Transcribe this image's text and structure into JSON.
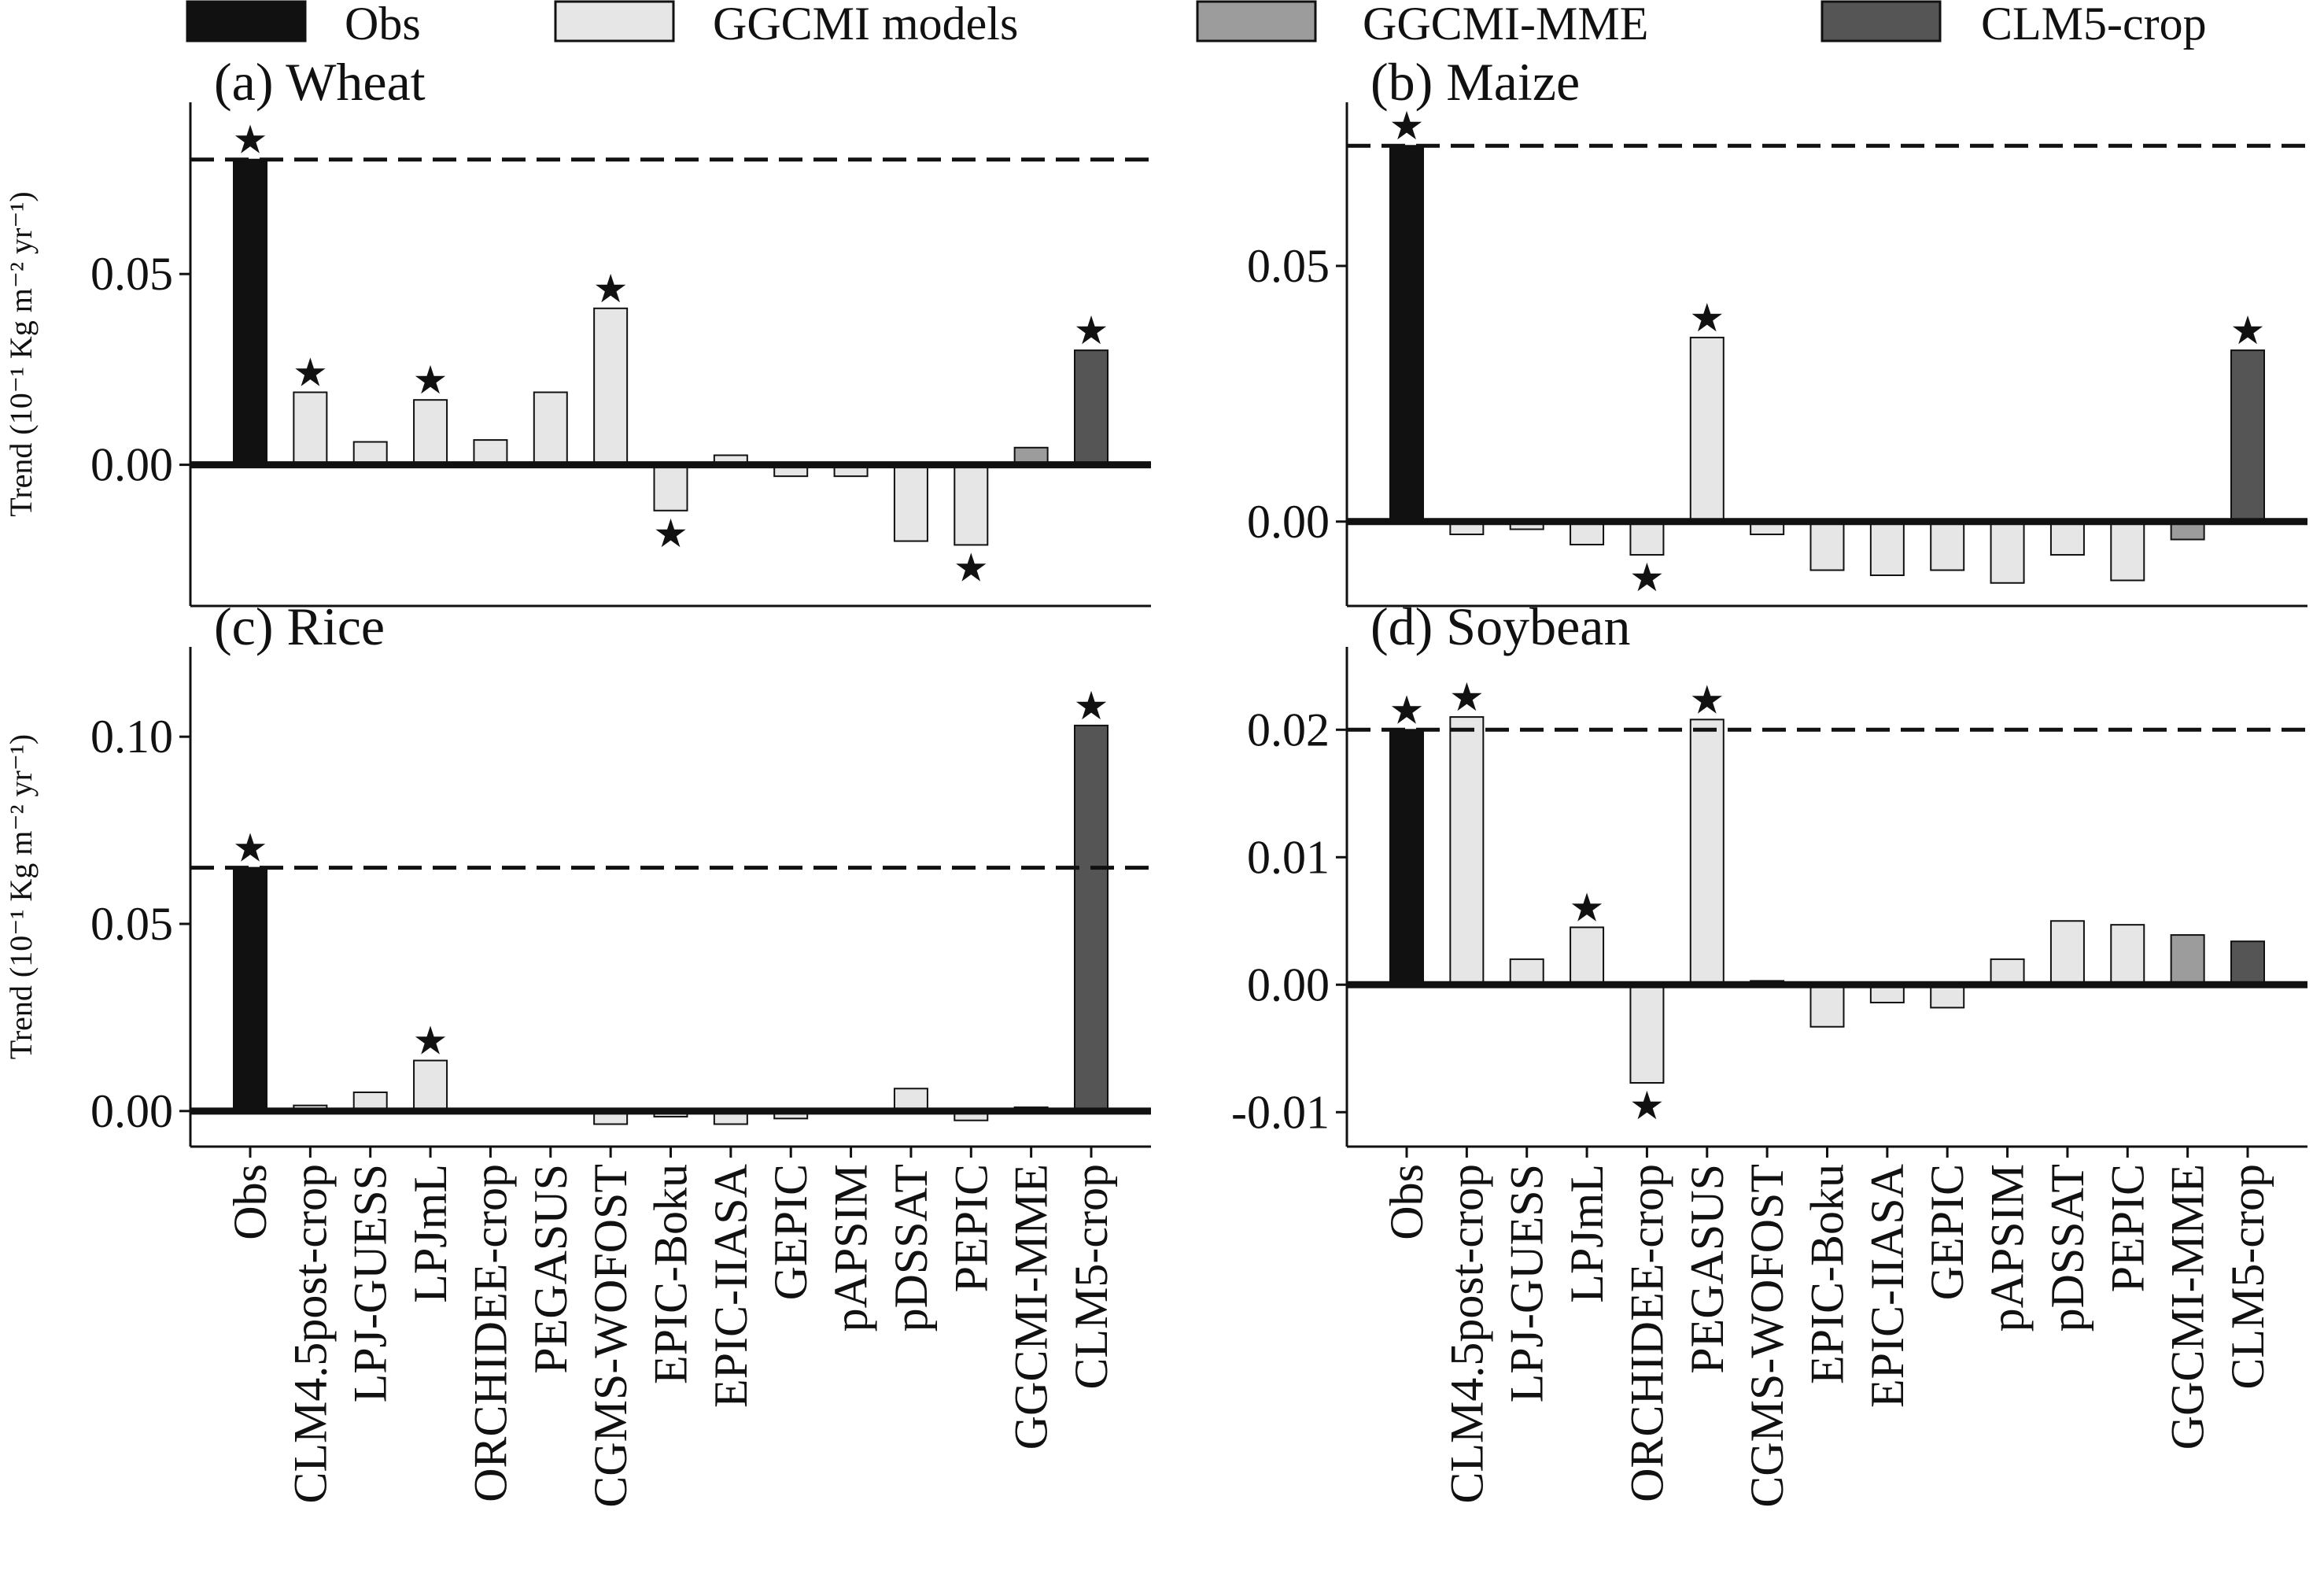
{
  "legend": [
    {
      "label": "Obs",
      "color": "#111111"
    },
    {
      "label": "GGCMI models",
      "color": "#e6e6e6"
    },
    {
      "label": "GGCMI-MME",
      "color": "#9c9c9c"
    },
    {
      "label": "CLM5-crop",
      "color": "#555555"
    }
  ],
  "star_glyph": "★",
  "chart_data": [
    {
      "type": "bar",
      "title": "(a) Wheat",
      "ylabel": "Trend (10⁻¹ Kg m⁻² yr⁻¹)",
      "ylim": [
        -0.037,
        0.095
      ],
      "yticks": [
        0.0,
        0.05
      ],
      "ytick_labels": [
        "0.00",
        "0.05"
      ],
      "obs_reference": 0.08,
      "categories": [
        "Obs",
        "CLM4.5post-crop",
        "LPJ-GUESS",
        "LPJmL",
        "ORCHIDEE-crop",
        "PEGASUS",
        "CGMS-WOFOST",
        "EPIC-Boku",
        "EPIC-IIASA",
        "GEPIC",
        "pAPSIM",
        "pDSSAT",
        "PEPIC",
        "GGCMI-MME",
        "CLM5-crop"
      ],
      "values": [
        0.08,
        0.019,
        0.006,
        0.017,
        0.0065,
        0.019,
        0.041,
        -0.012,
        0.0025,
        -0.003,
        -0.003,
        -0.02,
        -0.021,
        0.0045,
        0.03
      ],
      "significant": [
        true,
        true,
        false,
        true,
        false,
        false,
        true,
        true,
        false,
        false,
        false,
        false,
        true,
        false,
        true
      ],
      "show_xticklabels": false
    },
    {
      "type": "bar",
      "title": "(b) Maize",
      "ylabel": "",
      "ylim": [
        -0.0165,
        0.082
      ],
      "yticks": [
        0.0,
        0.05
      ],
      "ytick_labels": [
        "0.00",
        "0.05"
      ],
      "obs_reference": 0.0735,
      "categories": [
        "Obs",
        "CLM4.5post-crop",
        "LPJ-GUESS",
        "LPJmL",
        "ORCHIDEE-crop",
        "PEGASUS",
        "CGMS-WOFOST",
        "EPIC-Boku",
        "EPIC-IIASA",
        "GEPIC",
        "pAPSIM",
        "pDSSAT",
        "PEPIC",
        "GGCMI-MME",
        "CLM5-crop"
      ],
      "values": [
        0.0735,
        -0.0025,
        -0.0015,
        -0.0045,
        -0.0065,
        0.036,
        -0.0025,
        -0.0095,
        -0.0105,
        -0.0095,
        -0.012,
        -0.0065,
        -0.0115,
        -0.0035,
        0.0335
      ],
      "significant": [
        true,
        false,
        false,
        false,
        true,
        true,
        false,
        false,
        false,
        false,
        false,
        false,
        false,
        false,
        true
      ],
      "show_xticklabels": false
    },
    {
      "type": "bar",
      "title": "(c) Rice",
      "ylabel": "Trend (10⁻¹ Kg m⁻² yr⁻¹)",
      "ylim": [
        -0.0095,
        0.124
      ],
      "yticks": [
        0.0,
        0.05,
        0.1
      ],
      "ytick_labels": [
        "0.00",
        "0.05",
        "0.10"
      ],
      "obs_reference": 0.065,
      "categories": [
        "Obs",
        "CLM4.5post-crop",
        "LPJ-GUESS",
        "LPJmL",
        "ORCHIDEE-crop",
        "PEGASUS",
        "CGMS-WOFOST",
        "EPIC-Boku",
        "EPIC-IIASA",
        "GEPIC",
        "pAPSIM",
        "pDSSAT",
        "PEPIC",
        "GGCMI-MME",
        "CLM5-crop"
      ],
      "values": [
        0.065,
        0.0015,
        0.005,
        0.0135,
        0.0,
        0.0,
        -0.0035,
        -0.0015,
        -0.0035,
        -0.002,
        0.0,
        0.006,
        -0.0025,
        0.001,
        0.103
      ],
      "significant": [
        true,
        false,
        false,
        true,
        false,
        false,
        false,
        false,
        false,
        false,
        false,
        false,
        false,
        false,
        true
      ],
      "show_xticklabels": true
    },
    {
      "type": "bar",
      "title": "(d) Soybean",
      "ylabel": "",
      "ylim": [
        -0.0127,
        0.0265
      ],
      "yticks": [
        -0.01,
        0.0,
        0.01,
        0.02
      ],
      "ytick_labels": [
        "-0.01",
        "0.00",
        "0.01",
        "0.02"
      ],
      "obs_reference": 0.02,
      "categories": [
        "Obs",
        "CLM4.5post-crop",
        "LPJ-GUESS",
        "LPJmL",
        "ORCHIDEE-crop",
        "PEGASUS",
        "CGMS-WOFOST",
        "EPIC-Boku",
        "EPIC-IIASA",
        "GEPIC",
        "pAPSIM",
        "pDSSAT",
        "PEPIC",
        "GGCMI-MME",
        "CLM5-crop"
      ],
      "values": [
        0.02,
        0.021,
        0.002,
        0.0045,
        -0.0077,
        0.0208,
        0.0003,
        -0.0033,
        -0.0014,
        -0.0018,
        0.002,
        0.005,
        0.0047,
        0.0039,
        0.0034
      ],
      "significant": [
        true,
        true,
        false,
        true,
        true,
        true,
        false,
        false,
        false,
        false,
        false,
        false,
        false,
        false,
        false
      ],
      "show_xticklabels": true
    }
  ]
}
